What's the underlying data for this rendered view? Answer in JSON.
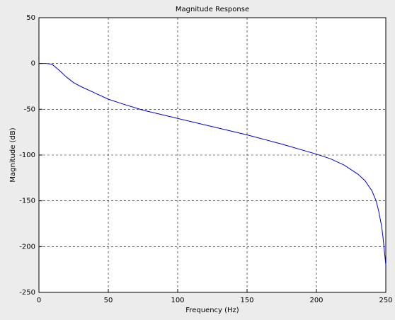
{
  "chart_data": {
    "type": "line",
    "title": "Magnitude Response",
    "x_label": "Frequency (Hz)",
    "y_label": "Magnitude (dB)",
    "x": [
      0,
      5,
      8,
      10,
      15,
      20,
      25,
      30,
      40,
      50,
      60,
      75,
      100,
      125,
      150,
      175,
      200,
      210,
      220,
      230,
      235,
      240,
      243,
      245,
      247,
      248,
      249,
      250
    ],
    "series": [
      {
        "name": "Magnitude",
        "color": "#0000cc",
        "values": [
          0,
          0,
          -0.5,
          -1.5,
          -8,
          -15,
          -21,
          -25,
          -32,
          -39,
          -44,
          -51,
          -60,
          -69,
          -78,
          -88,
          -99,
          -104,
          -111,
          -121,
          -128,
          -139,
          -150,
          -162,
          -178,
          -190,
          -205,
          -220
        ]
      }
    ],
    "xlim": [
      0,
      250
    ],
    "xticks": [
      0,
      50,
      100,
      150,
      200,
      250
    ],
    "ylim": [
      -250,
      50
    ],
    "yticks": [
      -250,
      -200,
      -150,
      -100,
      -50,
      0,
      50
    ],
    "grid": true
  }
}
